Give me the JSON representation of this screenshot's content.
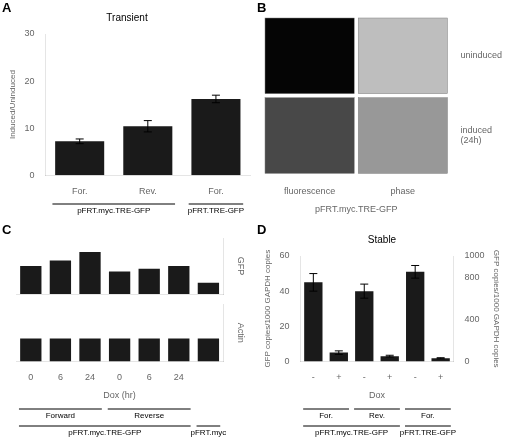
{
  "chart_data": [
    {
      "panel": "A",
      "type": "bar",
      "title": "Transient",
      "ylabel": "Induced/Uninduced",
      "categories": [
        "For.",
        "Rev.",
        "For."
      ],
      "values": [
        7.2,
        10.4,
        16.2
      ],
      "errors": [
        0.5,
        1.2,
        0.8
      ],
      "color": "#1a1a1a",
      "ylim": [
        0,
        30
      ],
      "yticks": [
        0,
        10,
        20,
        30
      ],
      "groups": [
        [
          {
            "label": "pFRT.myc.TRE-GFP",
            "size": 2
          },
          {
            "label": "pFRT.TRE-GFP",
            "size": 1
          }
        ]
      ],
      "grid": false
    },
    {
      "panel": "B",
      "type": "image_grid",
      "categories": [
        "fluorescence",
        "phase"
      ],
      "row_labels": [
        "uninduced",
        "induced\n(24h)"
      ],
      "colors": [
        [
          "#050505",
          "#bebebe"
        ],
        [
          "#484848",
          "#989898"
        ]
      ],
      "xlabel": "pFRT.myc.TRE-GFP"
    },
    {
      "panel": "C",
      "type": "gel",
      "xlabel": "Dox (hr)",
      "categories": [
        "0",
        "6",
        "24",
        "0",
        "6",
        "24",
        null
      ],
      "series": [
        {
          "name": "GFP",
          "values": [
            0.1,
            0.12,
            0.15,
            0.08,
            0.09,
            0.1,
            0.04
          ]
        },
        {
          "name": "Actin",
          "values": [
            0.08,
            0.08,
            0.08,
            0.08,
            0.08,
            0.08,
            0.08
          ]
        }
      ],
      "color": "#1a1a1a",
      "ylim": [
        0,
        0.2
      ],
      "tick_labels": "x",
      "grid": false,
      "groups": [
        [
          {
            "label": "Forward",
            "size": 3
          },
          {
            "label": "Reverse",
            "size": 3
          }
        ],
        [
          {
            "label": "pFRT.myc.TRE-GFP",
            "size": 6
          },
          {
            "label": "pFRT.myc",
            "size": 1
          }
        ]
      ]
    },
    {
      "panel": "D",
      "type": "bar",
      "title": "Stable",
      "xlabel": "Dox",
      "ylabel": "GFP copies/1000 GAPDH copies",
      "y2label": "GFP copies/1000 GAPDH copies",
      "categories": [
        "-",
        "+",
        "-",
        "+",
        "-",
        "+"
      ],
      "series": [
        {
          "values": [
            45,
            5,
            40,
            3,
            null,
            null
          ],
          "errors": [
            5,
            1,
            4,
            0.5,
            null,
            null
          ]
        },
        {
          "values": [
            null,
            null,
            null,
            null,
            850,
            30
          ],
          "errors": [
            null,
            null,
            null,
            null,
            60,
            5
          ],
          "axis": "y2"
        }
      ],
      "color": "#1a1a1a",
      "ylim": [
        0,
        60
      ],
      "yticks": [
        0,
        20,
        40,
        60
      ],
      "y2lim": [
        0,
        1000
      ],
      "y2ticks": [
        0,
        400,
        800,
        1000
      ],
      "groups": [
        [
          {
            "label": "For.",
            "size": 2
          },
          {
            "label": "Rev.",
            "size": 2
          },
          {
            "label": "For.",
            "size": 2
          }
        ],
        [
          {
            "label": "pFRT.myc.TRE-GFP",
            "size": 4
          },
          {
            "label": "pFRT.TRE-GFP",
            "size": 2
          }
        ]
      ],
      "grid": false
    }
  ]
}
